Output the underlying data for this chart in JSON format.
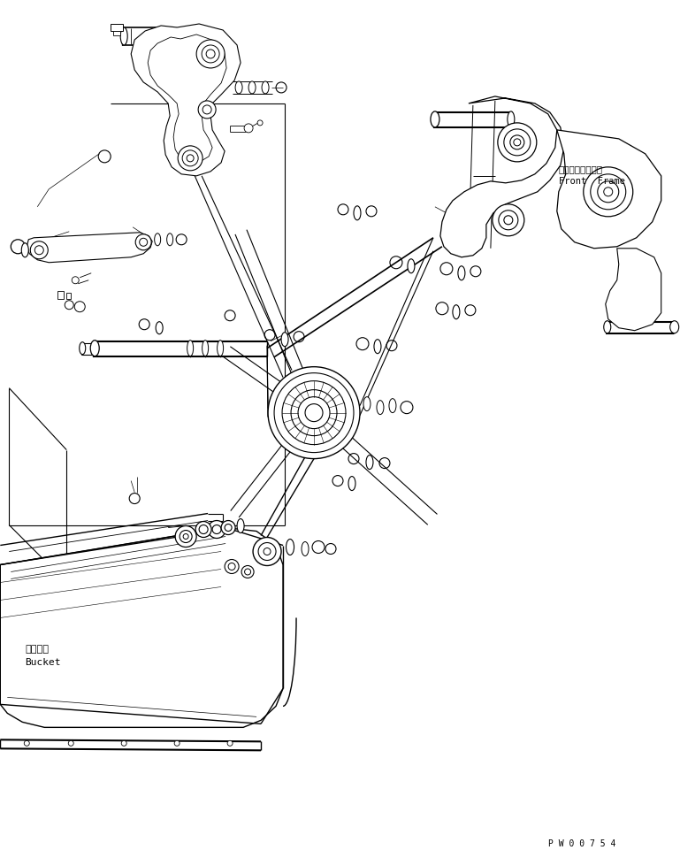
{
  "bg_color": "#ffffff",
  "line_color": "#000000",
  "text_color": "#000000",
  "label_front_frame_jp": "フロントフレーム",
  "label_front_frame_en": "Front  Frame",
  "label_bucket_jp": "バケット",
  "label_bucket_en": "Bucket",
  "label_code": "P W 0 0 7 5 4",
  "fig_width": 7.69,
  "fig_height": 9.62
}
